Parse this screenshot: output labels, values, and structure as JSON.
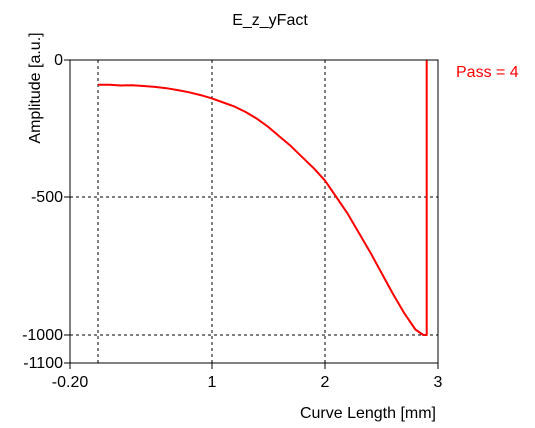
{
  "chart_data": {
    "type": "line",
    "title": "E_z_yFact",
    "xlabel": "Curve Length [mm]",
    "ylabel": "Amplitude [a.u.]",
    "xlim": [
      -0.2,
      3
    ],
    "ylim": [
      -1100,
      0
    ],
    "grid": true,
    "grid_style": "dashed",
    "x_ticks": [
      {
        "value": -0.2,
        "label": "-0.20"
      },
      {
        "value": 1,
        "label": "1"
      },
      {
        "value": 2,
        "label": "2"
      },
      {
        "value": 3,
        "label": "3"
      }
    ],
    "y_ticks": [
      {
        "value": 0,
        "label": "0"
      },
      {
        "value": -500,
        "label": "-500"
      },
      {
        "value": -1000,
        "label": "-1000"
      },
      {
        "value": -1100,
        "label": "-1100"
      }
    ],
    "x_grid": [
      0,
      1,
      2
    ],
    "y_grid": [
      -500,
      -1000
    ],
    "legend_text": "Pass = 4",
    "legend_position": "top-right outside plot",
    "series": [
      {
        "color": "#ff0000",
        "x": [
          0.0,
          0.1,
          0.2,
          0.3,
          0.4,
          0.5,
          0.6,
          0.7,
          0.8,
          0.9,
          1.0,
          1.1,
          1.2,
          1.3,
          1.4,
          1.5,
          1.6,
          1.7,
          1.8,
          1.9,
          2.0,
          2.1,
          2.2,
          2.3,
          2.4,
          2.5,
          2.6,
          2.7,
          2.8,
          2.87,
          2.9,
          2.9
        ],
        "y": [
          -90,
          -90,
          -93,
          -92,
          -95,
          -98,
          -103,
          -110,
          -118,
          -128,
          -140,
          -155,
          -170,
          -190,
          -215,
          -245,
          -280,
          -315,
          -355,
          -395,
          -440,
          -500,
          -560,
          -630,
          -700,
          -775,
          -850,
          -920,
          -980,
          -1000,
          -1000,
          0
        ]
      }
    ]
  }
}
